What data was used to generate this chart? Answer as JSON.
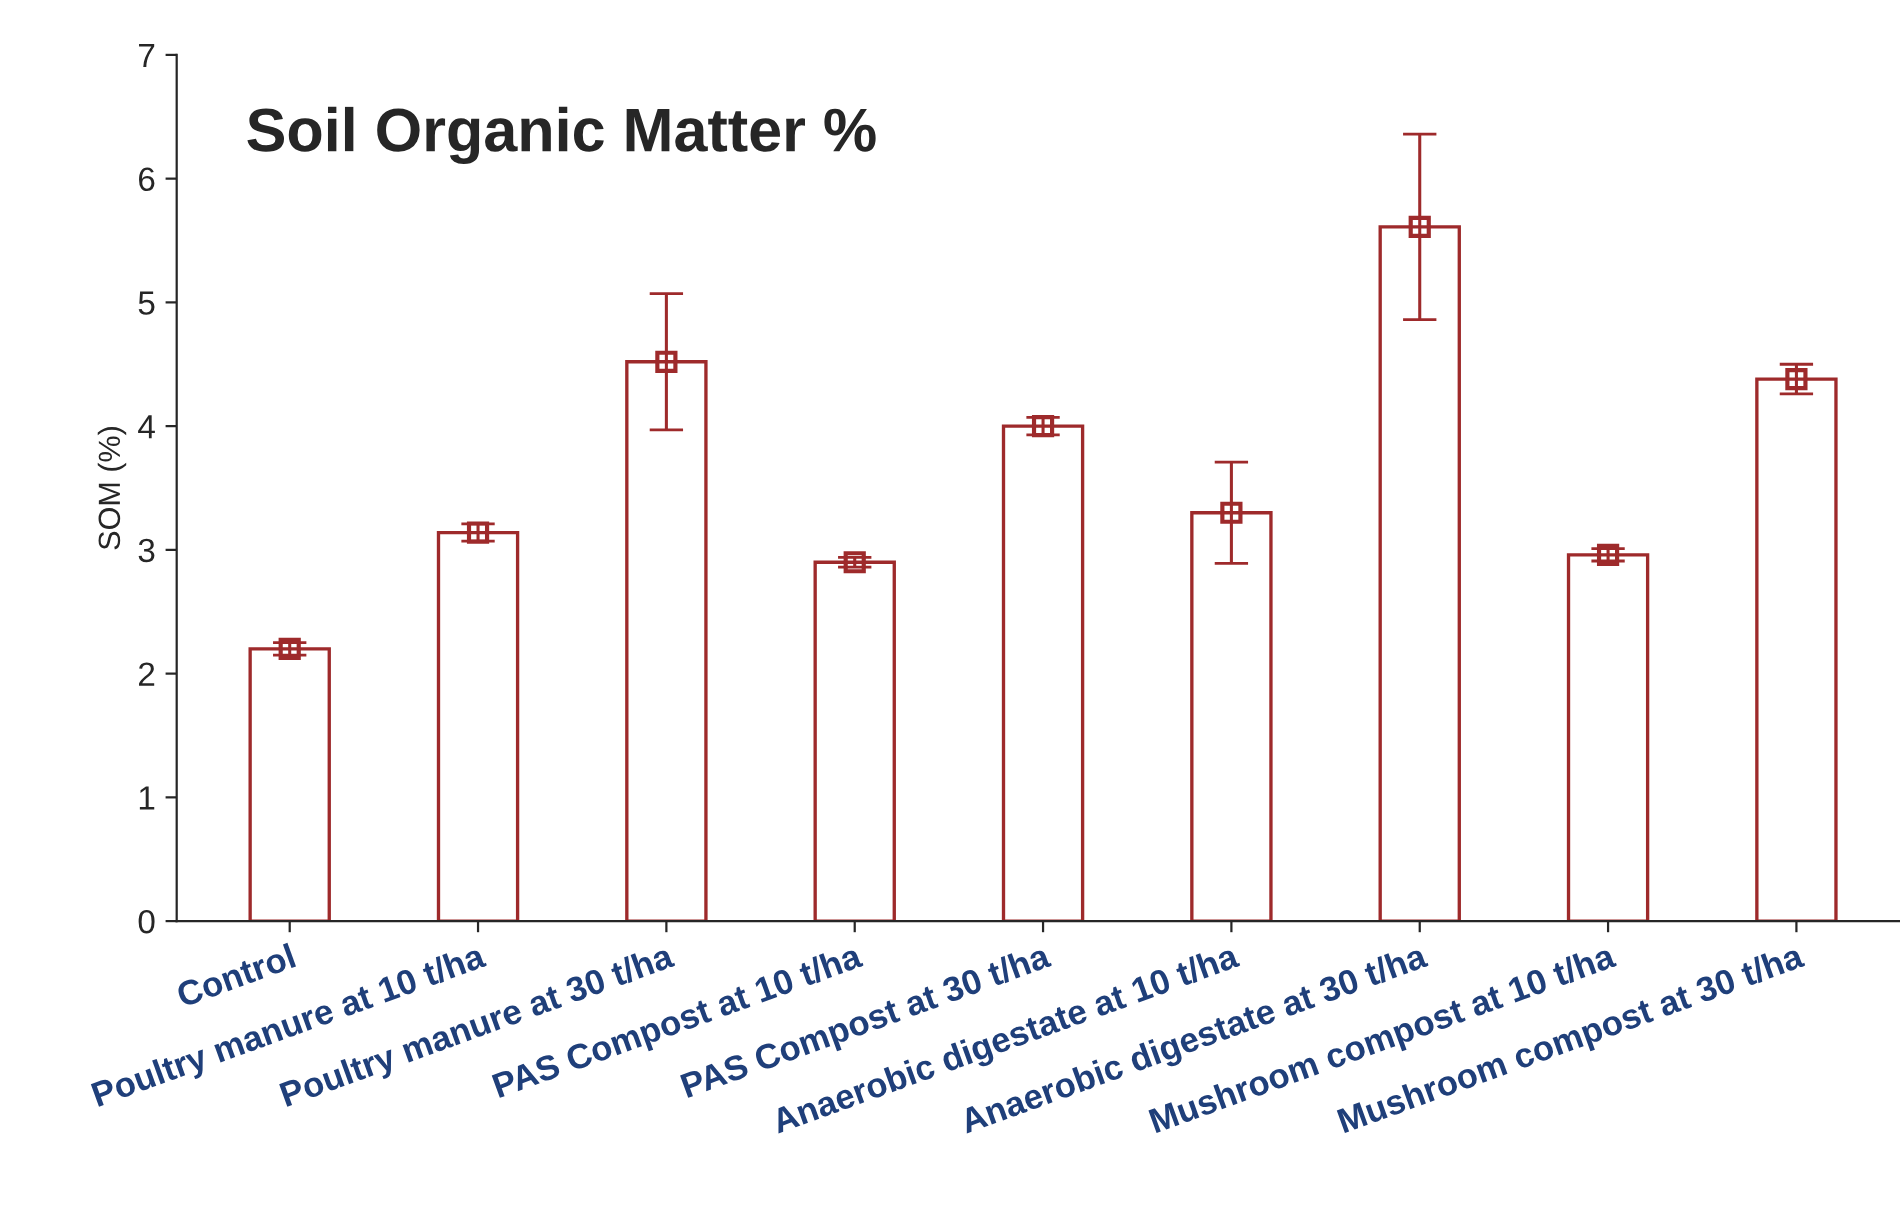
{
  "chart_data": {
    "type": "bar",
    "title": "Soil Organic Matter %",
    "ylabel": "SOM (%)",
    "categories": [
      "Control",
      "Poultry manure at 10 t/ha",
      "Poultry manure at 30 t/ha",
      "PAS Compost at 10 t/ha",
      "PAS Compost at 30 t/ha",
      "Anaerobic digestate at 10 t/ha",
      "Anaerobic digestate at 30 t/ha",
      "Mushroom compost at 10 t/ha",
      "Mushroom compost at 30 t/ha"
    ],
    "series": [
      {
        "color": "#9e2a2b",
        "values": [
          2.2,
          3.14,
          4.52,
          2.9,
          4.0,
          3.3,
          5.61,
          2.96,
          4.38
        ],
        "errors": [
          0.05,
          0.07,
          0.55,
          0.04,
          0.07,
          0.41,
          0.75,
          0.05,
          0.12
        ]
      },
      {
        "type": "scatter",
        "color": "#9e2a2b",
        "marker": "square",
        "x": [
          "Control",
          "Poultry manure at 10 t/ha",
          "Poultry manure at 30 t/ha",
          "PAS Compost at 10 t/ha",
          "PAS Compost at 30 t/ha",
          "Anaerobic digestate at 10 t/ha",
          "Anaerobic digestate at 30 t/ha",
          "Mushroom compost at 10 t/ha",
          "Mushroom compost at 30 t/ha"
        ],
        "values": [
          2.2,
          3.14,
          4.52,
          2.9,
          4.0,
          3.3,
          5.61,
          2.96,
          4.38
        ]
      }
    ],
    "ylim": [
      0,
      7
    ],
    "yticks": [
      0,
      1,
      2,
      3,
      4,
      5,
      6,
      7
    ],
    "grid": false,
    "legend": false
  }
}
